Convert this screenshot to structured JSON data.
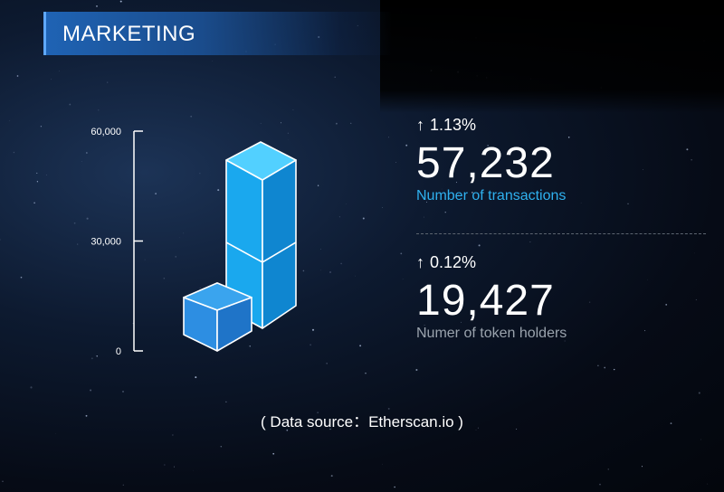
{
  "header": {
    "title": "MARKETING"
  },
  "chart_data": {
    "type": "bar",
    "style": "3d-stacked-cubes",
    "yticks": [
      "60,000",
      "30,000",
      "0"
    ],
    "ytick_values": [
      60000,
      30000,
      0
    ],
    "ylim": [
      0,
      60000
    ],
    "bars": [
      {
        "name": "Numer of token holders",
        "value": 19427
      },
      {
        "name": "Number of transactions",
        "value": 57232
      }
    ],
    "colors": {
      "cube_front": "#1aa8ee",
      "cube_top": "#52d0ff",
      "cube_side": "#0f86d0",
      "cube_small": "#2d8ee2",
      "edge": "#ffffff"
    }
  },
  "stats": [
    {
      "change": "1.13%",
      "value": "57,232",
      "label": "Number of  transactions"
    },
    {
      "change": "0.12%",
      "value": "19,427",
      "label": "Numer of token holders"
    }
  ],
  "source": "( Data source：Etherscan.io )"
}
